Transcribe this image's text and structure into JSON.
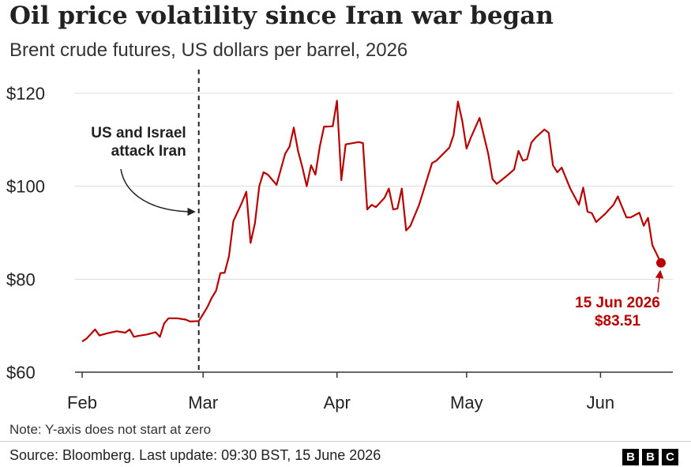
{
  "header": {
    "title": "Oil price volatility since Iran war began",
    "subtitle": "Brent crude futures, US dollars per barrel, 2026"
  },
  "chart_data": {
    "type": "line",
    "title": "Oil price volatility since Iran war began",
    "subtitle": "Brent crude futures, US dollars per barrel, 2026",
    "xlabel": "",
    "ylabel": "",
    "ylim": [
      60,
      122
    ],
    "yticks": [
      60,
      80,
      100,
      120
    ],
    "ytick_labels": [
      "$60",
      "$80",
      "$100",
      "$120"
    ],
    "xticks": [
      "2026-02-01",
      "2026-03-01",
      "2026-04-01",
      "2026-05-01",
      "2026-06-01"
    ],
    "xtick_labels": [
      "Feb",
      "Mar",
      "Apr",
      "May",
      "Jun"
    ],
    "xlim": [
      "2026-02-01",
      "2026-06-15"
    ],
    "grid": "horizontal",
    "color": "#b80000",
    "series": [
      {
        "points": [
          [
            "2026-02-01",
            66.6
          ],
          [
            "2026-02-02",
            67.2
          ],
          [
            "2026-02-04",
            69.2
          ],
          [
            "2026-02-05",
            67.9
          ],
          [
            "2026-02-07",
            68.4
          ],
          [
            "2026-02-09",
            68.8
          ],
          [
            "2026-02-11",
            68.5
          ],
          [
            "2026-02-12",
            69.2
          ],
          [
            "2026-02-13",
            67.6
          ],
          [
            "2026-02-14",
            67.8
          ],
          [
            "2026-02-16",
            68.1
          ],
          [
            "2026-02-18",
            68.6
          ],
          [
            "2026-02-19",
            67.6
          ],
          [
            "2026-02-20",
            70.5
          ],
          [
            "2026-02-21",
            71.6
          ],
          [
            "2026-02-23",
            71.6
          ],
          [
            "2026-02-25",
            71.3
          ],
          [
            "2026-02-26",
            70.9
          ],
          [
            "2026-02-28",
            71.0
          ],
          [
            "2026-03-01",
            72.5
          ],
          [
            "2026-03-02",
            74.0
          ],
          [
            "2026-03-03",
            76.0
          ],
          [
            "2026-03-04",
            77.5
          ],
          [
            "2026-03-05",
            81.3
          ],
          [
            "2026-03-06",
            81.4
          ],
          [
            "2026-03-07",
            85.0
          ],
          [
            "2026-03-08",
            92.5
          ],
          [
            "2026-03-10",
            96.5
          ],
          [
            "2026-03-11",
            98.8
          ],
          [
            "2026-03-12",
            87.8
          ],
          [
            "2026-03-13",
            92.0
          ],
          [
            "2026-03-14",
            100.0
          ],
          [
            "2026-03-15",
            103.0
          ],
          [
            "2026-03-16",
            102.5
          ],
          [
            "2026-03-18",
            100.3
          ],
          [
            "2026-03-20",
            107.0
          ],
          [
            "2026-03-21",
            108.5
          ],
          [
            "2026-03-22",
            112.6
          ],
          [
            "2026-03-23",
            107.5
          ],
          [
            "2026-03-24",
            104.0
          ],
          [
            "2026-03-25",
            100.0
          ],
          [
            "2026-03-26",
            104.5
          ],
          [
            "2026-03-27",
            102.5
          ],
          [
            "2026-03-28",
            108.5
          ],
          [
            "2026-03-29",
            112.8
          ],
          [
            "2026-03-31",
            112.9
          ],
          [
            "2026-04-01",
            118.4
          ],
          [
            "2026-04-02",
            101.3
          ],
          [
            "2026-04-03",
            109.0
          ],
          [
            "2026-04-06",
            109.5
          ],
          [
            "2026-04-07",
            109.3
          ],
          [
            "2026-04-08",
            95.0
          ],
          [
            "2026-04-09",
            96.0
          ],
          [
            "2026-04-10",
            95.5
          ],
          [
            "2026-04-12",
            97.5
          ],
          [
            "2026-04-13",
            99.5
          ],
          [
            "2026-04-14",
            95.0
          ],
          [
            "2026-04-15",
            95.2
          ],
          [
            "2026-04-16",
            99.5
          ],
          [
            "2026-04-17",
            90.5
          ],
          [
            "2026-04-18",
            91.5
          ],
          [
            "2026-04-20",
            96.0
          ],
          [
            "2026-04-23",
            105.0
          ],
          [
            "2026-04-24",
            105.5
          ],
          [
            "2026-04-27",
            108.3
          ],
          [
            "2026-04-28",
            111.0
          ],
          [
            "2026-04-29",
            118.2
          ],
          [
            "2026-04-30",
            114.0
          ],
          [
            "2026-05-01",
            108.1
          ],
          [
            "2026-05-02",
            110.5
          ],
          [
            "2026-05-04",
            114.7
          ],
          [
            "2026-05-06",
            107.0
          ],
          [
            "2026-05-07",
            101.5
          ],
          [
            "2026-05-08",
            100.5
          ],
          [
            "2026-05-10",
            102.0
          ],
          [
            "2026-05-12",
            103.6
          ],
          [
            "2026-05-13",
            107.6
          ],
          [
            "2026-05-14",
            105.5
          ],
          [
            "2026-05-15",
            105.8
          ],
          [
            "2026-05-16",
            109.4
          ],
          [
            "2026-05-17",
            110.5
          ],
          [
            "2026-05-19",
            112.2
          ],
          [
            "2026-05-20",
            111.5
          ],
          [
            "2026-05-21",
            104.5
          ],
          [
            "2026-05-22",
            103.0
          ],
          [
            "2026-05-23",
            104.0
          ],
          [
            "2026-05-25",
            99.5
          ],
          [
            "2026-05-27",
            96.0
          ],
          [
            "2026-05-28",
            99.7
          ],
          [
            "2026-05-29",
            94.5
          ],
          [
            "2026-05-30",
            94.2
          ],
          [
            "2026-05-31",
            92.3
          ],
          [
            "2026-06-02",
            94.0
          ],
          [
            "2026-06-04",
            96.0
          ],
          [
            "2026-06-05",
            97.8
          ],
          [
            "2026-06-06",
            95.5
          ],
          [
            "2026-06-07",
            93.3
          ],
          [
            "2026-06-08",
            93.3
          ],
          [
            "2026-06-10",
            94.3
          ],
          [
            "2026-06-11",
            91.5
          ],
          [
            "2026-06-12",
            93.2
          ],
          [
            "2026-06-13",
            87.3
          ],
          [
            "2026-06-15",
            83.51
          ]
        ]
      }
    ],
    "event_marker": {
      "x": "2026-02-28",
      "label_lines": [
        "US and Israel",
        "attack Iran"
      ]
    },
    "last_point": {
      "x": "2026-06-15",
      "y": 83.51,
      "label_lines": [
        "15 Jun 2026",
        "$83.51"
      ]
    }
  },
  "footer": {
    "note": "Note: Y-axis does not start at zero",
    "source": "Source: Bloomberg. Last update: 09:30 BST, 15 June 2026",
    "logo_letters": [
      "B",
      "B",
      "C"
    ]
  }
}
